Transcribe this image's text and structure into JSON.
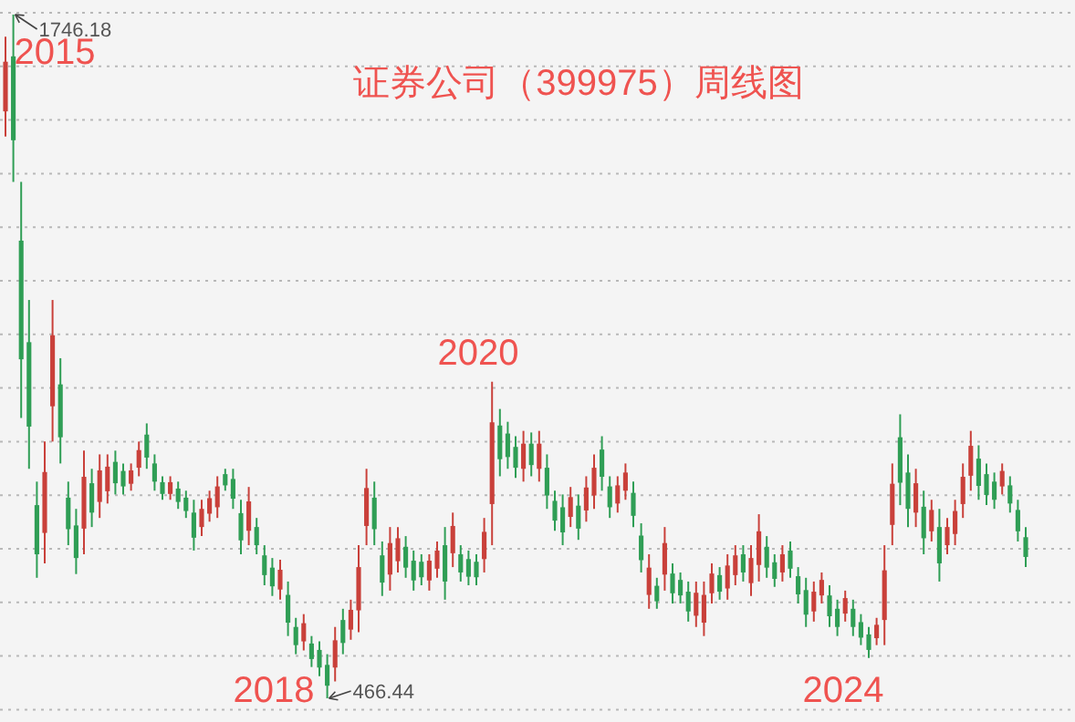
{
  "chart_data": {
    "type": "candlestick",
    "title": "证券公司（399975）周线图",
    "colors": [
      "#c9403a",
      "#2f9e55",
      "#2f9e55",
      "#2f9e55",
      "#2f9e55",
      "#c9403a",
      "#c9403a",
      "#2f9e55",
      "#2f9e55",
      "#2f9e55",
      "#c9403a",
      "#2f9e55",
      "#c9403a",
      "#c9403a",
      "#2f9e55",
      "#2f9e55",
      "#c9403a",
      "#c9403a",
      "#2f9e55",
      "#2f9e55",
      "#2f9e55",
      "#c9403a",
      "#2f9e55",
      "#2f9e55",
      "#2f9e55",
      "#c9403a",
      "#c9403a",
      "#c9403a",
      "#2f9e55",
      "#2f9e55",
      "#2f9e55",
      "#c9403a",
      "#2f9e55",
      "#2f9e55",
      "#2f9e55",
      "#c9403a",
      "#2f9e55",
      "#2f9e55",
      "#c9403a",
      "#2f9e55",
      "#2f9e55",
      "#2f9e55",
      "#c9403a",
      "#2f9e55",
      "#c9403a",
      "#c9403a",
      "#c9403a",
      "#2f9e55",
      "#2f9e55",
      "#c9403a",
      "#c9403a",
      "#2f9e55",
      "#2f9e55",
      "#2f9e55",
      "#c9403a",
      "#c9403a",
      "#2f9e55",
      "#c9403a",
      "#2f9e55",
      "#2f9e55",
      "#2f9e55",
      "#c9403a",
      "#c9403a",
      "#2f9e55",
      "#2f9e55",
      "#2f9e55",
      "#c9403a",
      "#2f9e55",
      "#c9403a",
      "#2f9e55",
      "#2f9e55",
      "#2f9e55",
      "#c9403a",
      "#2f9e55",
      "#c9403a",
      "#c9403a",
      "#2f9e55",
      "#2f9e55",
      "#c9403a",
      "#c9403a",
      "#2f9e55",
      "#2f9e55",
      "#c9403a",
      "#2f9e55",
      "#c9403a",
      "#2f9e55",
      "#2f9e55",
      "#2f9e55",
      "#c9403a",
      "#c9403a",
      "#c9403a",
      "#2f9e55",
      "#c9403a",
      "#c9403a",
      "#2f9e55",
      "#c9403a",
      "#c9403a",
      "#2f9e55",
      "#2f9e55",
      "#c9403a",
      "#2f9e55",
      "#2f9e55",
      "#2f9e55",
      "#c9403a",
      "#c9403a",
      "#2f9e55",
      "#2f9e55",
      "#c9403a",
      "#2f9e55",
      "#2f9e55",
      "#2f9e55",
      "#c9403a",
      "#c9403a",
      "#c9403a",
      "#2f9e55",
      "#2f9e55",
      "#c9403a",
      "#2f9e55",
      "#c9403a",
      "#2f9e55",
      "#c9403a",
      "#c9403a",
      "#c9403a",
      "#c9403a",
      "#2f9e55",
      "#2f9e55",
      "#2f9e55",
      "#c9403a",
      "#2f9e55",
      "#2f9e55",
      "#2f9e55"
    ],
    "grid": true,
    "categories": [
      null,
      null,
      null,
      null,
      null,
      null,
      null,
      null,
      null,
      null,
      null,
      null,
      null,
      null,
      null,
      null,
      null,
      null,
      null,
      null,
      null,
      null,
      null,
      null,
      null,
      null,
      null,
      null,
      null,
      null,
      null,
      null,
      null,
      null,
      null,
      null,
      null,
      null,
      null,
      null,
      null,
      null,
      null,
      null,
      null,
      null,
      null,
      null,
      null,
      null,
      null,
      null,
      null,
      null,
      null,
      null,
      null,
      null,
      null,
      null,
      null,
      null,
      null,
      null,
      null,
      null,
      null,
      null,
      null,
      null,
      null,
      null,
      null,
      null,
      null,
      null,
      null,
      null,
      null,
      null,
      null,
      null,
      null,
      null,
      null,
      null,
      null,
      null,
      null,
      null,
      null,
      null,
      null,
      null,
      null,
      null,
      null,
      null,
      null,
      null,
      null,
      null,
      null,
      null,
      null,
      null,
      null,
      null,
      null,
      null,
      null,
      null,
      null,
      null,
      null,
      null,
      null,
      null,
      null,
      null,
      null,
      null,
      null,
      null,
      null,
      null,
      null,
      null,
      null,
      null,
      null
    ],
    "ohlc": [
      [
        1565,
        1705,
        1518,
        1658
      ],
      [
        1668,
        1746.18,
        1433,
        1511
      ],
      [
        1323,
        1433,
        991,
        1101
      ],
      [
        1133,
        1212,
        896,
        975
      ],
      [
        828,
        872,
        692,
        736
      ],
      [
        776,
        947,
        719,
        890
      ],
      [
        1013,
        1212,
        947,
        1146
      ],
      [
        1054,
        1103,
        906,
        955
      ],
      [
        842,
        872,
        753,
        783
      ],
      [
        790,
        821,
        699,
        729
      ],
      [
        784,
        930,
        736,
        881
      ],
      [
        869,
        896,
        787,
        814
      ],
      [
        834,
        923,
        804,
        893
      ],
      [
        854,
        923,
        831,
        900
      ],
      [
        909,
        930,
        848,
        869
      ],
      [
        892,
        906,
        848,
        863
      ],
      [
        868,
        906,
        855,
        893
      ],
      [
        898,
        947,
        882,
        931
      ],
      [
        960,
        981,
        896,
        917
      ],
      [
        906,
        923,
        855,
        872
      ],
      [
        871,
        882,
        838,
        849
      ],
      [
        849,
        882,
        838,
        871
      ],
      [
        859,
        872,
        821,
        834
      ],
      [
        842,
        855,
        804,
        817
      ],
      [
        814,
        838,
        743,
        767
      ],
      [
        787,
        838,
        770,
        821
      ],
      [
        812,
        855,
        797,
        841
      ],
      [
        824,
        882,
        804,
        863
      ],
      [
        886,
        896,
        855,
        865
      ],
      [
        877,
        896,
        821,
        840
      ],
      [
        813,
        838,
        736,
        762
      ],
      [
        780,
        862,
        753,
        835
      ],
      [
        787,
        804,
        736,
        753
      ],
      [
        734,
        753,
        678,
        697
      ],
      [
        711,
        729,
        658,
        676
      ],
      [
        670,
        726,
        651,
        707
      ],
      [
        660,
        685,
        583,
        608
      ],
      [
        600,
        617,
        549,
        566
      ],
      [
        573,
        624,
        556,
        607
      ],
      [
        569,
        583,
        525,
        540
      ],
      [
        557,
        573,
        508,
        524
      ],
      [
        529,
        549,
        466.44,
        490
      ],
      [
        524,
        600,
        498,
        575
      ],
      [
        613,
        634,
        549,
        570
      ],
      [
        595,
        651,
        576,
        632
      ],
      [
        631,
        753,
        590,
        712
      ],
      [
        789,
        896,
        753,
        860
      ],
      [
        842,
        872,
        753,
        783
      ],
      [
        734,
        760,
        658,
        683
      ],
      [
        698,
        787,
        668,
        757
      ],
      [
        723,
        787,
        702,
        766
      ],
      [
        750,
        770,
        692,
        711
      ],
      [
        724,
        743,
        668,
        687
      ],
      [
        722,
        736,
        678,
        693
      ],
      [
        687,
        736,
        668,
        724
      ],
      [
        709,
        760,
        692,
        743
      ],
      [
        753,
        787,
        651,
        685
      ],
      [
        738,
        814,
        712,
        789
      ],
      [
        736,
        753,
        685,
        702
      ],
      [
        727,
        743,
        678,
        694
      ],
      [
        722,
        736,
        678,
        693
      ],
      [
        727,
        804,
        702,
        778
      ],
      [
        830,
        1059,
        753,
        983
      ],
      [
        977,
        1008,
        882,
        914
      ],
      [
        962,
        984,
        896,
        918
      ],
      [
        937,
        957,
        879,
        898
      ],
      [
        896,
        967,
        872,
        943
      ],
      [
        943,
        964,
        882,
        903
      ],
      [
        896,
        967,
        872,
        943
      ],
      [
        898,
        923,
        821,
        846
      ],
      [
        836,
        855,
        780,
        799
      ],
      [
        824,
        848,
        753,
        777
      ],
      [
        806,
        862,
        787,
        843
      ],
      [
        827,
        848,
        763,
        784
      ],
      [
        818,
        882,
        797,
        861
      ],
      [
        846,
        923,
        821,
        898
      ],
      [
        932,
        957,
        855,
        881
      ],
      [
        863,
        882,
        804,
        824
      ],
      [
        831,
        882,
        814,
        865
      ],
      [
        855,
        906,
        838,
        889
      ],
      [
        851,
        872,
        787,
        808
      ],
      [
        771,
        794,
        702,
        725
      ],
      [
        660,
        736,
        634,
        711
      ],
      [
        677,
        692,
        634,
        648
      ],
      [
        698,
        787,
        668,
        757
      ],
      [
        700,
        719,
        644,
        663
      ],
      [
        688,
        702,
        644,
        659
      ],
      [
        666,
        685,
        610,
        629
      ],
      [
        621,
        685,
        600,
        664
      ],
      [
        608,
        685,
        583,
        660
      ],
      [
        663,
        719,
        644,
        700
      ],
      [
        697,
        712,
        651,
        666
      ],
      [
        672,
        736,
        651,
        715
      ],
      [
        697,
        753,
        678,
        734
      ],
      [
        736,
        753,
        685,
        702
      ],
      [
        682,
        753,
        658,
        729
      ],
      [
        716,
        811,
        685,
        779
      ],
      [
        750,
        770,
        692,
        711
      ],
      [
        721,
        736,
        675,
        690
      ],
      [
        702,
        753,
        685,
        736
      ],
      [
        743,
        760,
        692,
        709
      ],
      [
        695,
        712,
        644,
        661
      ],
      [
        669,
        692,
        600,
        623
      ],
      [
        629,
        685,
        610,
        666
      ],
      [
        659,
        702,
        644,
        688
      ],
      [
        659,
        678,
        600,
        620
      ],
      [
        634,
        651,
        583,
        600
      ],
      [
        625,
        668,
        610,
        654
      ],
      [
        634,
        651,
        583,
        600
      ],
      [
        609,
        624,
        566,
        580
      ],
      [
        586,
        600,
        542,
        557
      ],
      [
        579,
        617,
        566,
        604
      ],
      [
        613,
        753,
        566,
        706
      ],
      [
        791,
        906,
        753,
        868
      ],
      [
        955,
        998,
        828,
        870
      ],
      [
        889,
        923,
        787,
        821
      ],
      [
        814,
        896,
        787,
        869
      ],
      [
        825,
        855,
        736,
        766
      ],
      [
        779,
        838,
        760,
        819
      ],
      [
        787,
        821,
        685,
        719
      ],
      [
        753,
        804,
        736,
        787
      ],
      [
        774,
        838,
        753,
        817
      ],
      [
        830,
        906,
        804,
        881
      ],
      [
        883,
        967,
        855,
        939
      ],
      [
        915,
        940,
        838,
        864
      ],
      [
        886,
        906,
        828,
        847
      ],
      [
        872,
        889,
        821,
        838
      ],
      [
        863,
        906,
        848,
        892
      ],
      [
        865,
        882,
        814,
        831
      ],
      [
        819,
        838,
        760,
        779
      ],
      [
        768,
        787,
        712,
        731
      ]
    ],
    "annotations": [
      "1746.18",
      "466.44",
      "2015",
      "2018",
      "2020",
      "2024"
    ]
  }
}
